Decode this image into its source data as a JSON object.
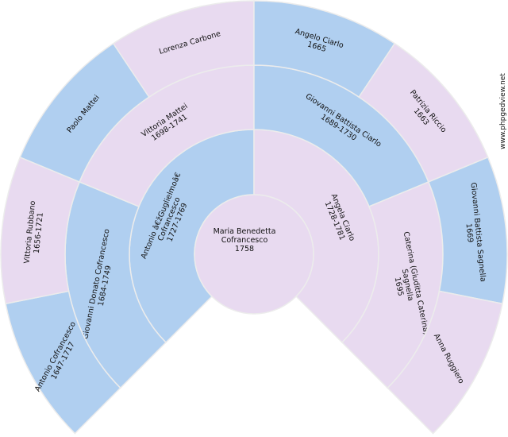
{
  "colors": {
    "male": "#b0cff0",
    "female": "#e8daf0",
    "border": "#ececec"
  },
  "watermark": "www.phpgedview.net",
  "root": {
    "lines": [
      "Maria Benedetta",
      "Cofrancesco",
      "1758"
    ],
    "sex": "female"
  },
  "generations": [
    [
      {
        "lines": [
          "Antonio â€žGuglielmoâ€",
          "Cofrancesco",
          "1727-1769"
        ],
        "sex": "male"
      },
      {
        "lines": [
          "Angela Ciarlo",
          "1728-1781"
        ],
        "sex": "female"
      }
    ],
    [
      {
        "lines": [
          "Giovanni Donato Cofrancesco",
          "1684-1749"
        ],
        "sex": "male"
      },
      {
        "lines": [
          "Vittoria Mattei",
          "1698-1741"
        ],
        "sex": "female"
      },
      {
        "lines": [
          "Giovanni Battista Ciarlo",
          "1689-1730"
        ],
        "sex": "male"
      },
      {
        "lines": [
          "Caterina (Giuditta Caterina)",
          "Sagnella",
          "1695"
        ],
        "sex": "female"
      }
    ],
    [
      {
        "lines": [
          "Antonio Cofrancesco",
          "1647-1717"
        ],
        "sex": "male"
      },
      {
        "lines": [
          "Vittoria Rubbano",
          "1656-1721"
        ],
        "sex": "female"
      },
      {
        "lines": [
          "Paolo Mattei"
        ],
        "sex": "male"
      },
      {
        "lines": [
          "Lorenza Carbone"
        ],
        "sex": "female"
      },
      {
        "lines": [
          "Angelo Ciarlo",
          "1665"
        ],
        "sex": "male"
      },
      {
        "lines": [
          "Patrizia Riccio",
          "1663"
        ],
        "sex": "female"
      },
      {
        "lines": [
          "Giovanni Battista Sagnella",
          "1669"
        ],
        "sex": "male"
      },
      {
        "lines": [
          "Anna Ruggiero"
        ],
        "sex": "female"
      }
    ]
  ]
}
